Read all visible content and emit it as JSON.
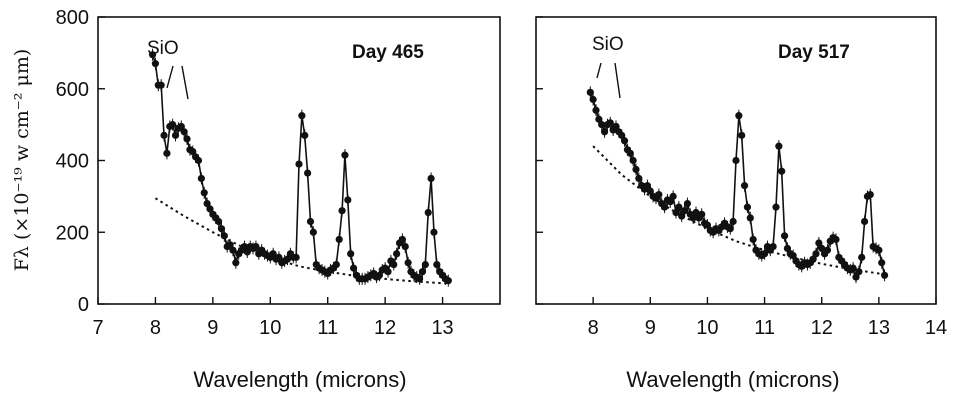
{
  "chart_data": [
    {
      "type": "scatter",
      "title": "",
      "annotation": "Day 465",
      "feature_label": "SiO",
      "xlabel": "Wavelength  (microns)",
      "ylabel": "Fλ  (×10⁻¹⁹ w cm⁻² μm)",
      "xlim": [
        7,
        14
      ],
      "ylim": [
        0,
        800
      ],
      "xticks": [
        "7",
        "8",
        "9",
        "10",
        "11",
        "12",
        "13"
      ],
      "yticks": [
        "0",
        "200",
        "400",
        "600",
        "800"
      ],
      "series": [
        {
          "style": "points-with-line",
          "points": [
            [
              7.95,
              695
            ],
            [
              8.0,
              670
            ],
            [
              8.05,
              610
            ],
            [
              8.1,
              610
            ],
            [
              8.15,
              470
            ],
            [
              8.2,
              420
            ],
            [
              8.25,
              495
            ],
            [
              8.3,
              500
            ],
            [
              8.35,
              470
            ],
            [
              8.4,
              490
            ],
            [
              8.45,
              495
            ],
            [
              8.5,
              480
            ],
            [
              8.55,
              460
            ],
            [
              8.6,
              430
            ],
            [
              8.65,
              425
            ],
            [
              8.7,
              410
            ],
            [
              8.75,
              400
            ],
            [
              8.8,
              350
            ],
            [
              8.85,
              310
            ],
            [
              8.9,
              280
            ],
            [
              8.95,
              265
            ],
            [
              9.0,
              250
            ],
            [
              9.05,
              240
            ],
            [
              9.1,
              230
            ],
            [
              9.15,
              210
            ],
            [
              9.2,
              190
            ],
            [
              9.25,
              160
            ],
            [
              9.3,
              165
            ],
            [
              9.35,
              150
            ],
            [
              9.4,
              115
            ],
            [
              9.45,
              140
            ],
            [
              9.5,
              150
            ],
            [
              9.55,
              160
            ],
            [
              9.6,
              145
            ],
            [
              9.65,
              160
            ],
            [
              9.7,
              155
            ],
            [
              9.75,
              160
            ],
            [
              9.8,
              140
            ],
            [
              9.85,
              150
            ],
            [
              9.9,
              140
            ],
            [
              9.95,
              135
            ],
            [
              10.0,
              130
            ],
            [
              10.05,
              140
            ],
            [
              10.1,
              125
            ],
            [
              10.15,
              130
            ],
            [
              10.2,
              115
            ],
            [
              10.25,
              120
            ],
            [
              10.3,
              125
            ],
            [
              10.35,
              140
            ],
            [
              10.4,
              130
            ],
            [
              10.45,
              130
            ],
            [
              10.5,
              390
            ],
            [
              10.55,
              525
            ],
            [
              10.6,
              470
            ],
            [
              10.65,
              365
            ],
            [
              10.7,
              230
            ],
            [
              10.75,
              200
            ],
            [
              10.8,
              110
            ],
            [
              10.85,
              100
            ],
            [
              10.9,
              95
            ],
            [
              10.95,
              90
            ],
            [
              11.0,
              85
            ],
            [
              11.05,
              95
            ],
            [
              11.1,
              100
            ],
            [
              11.15,
              110
            ],
            [
              11.2,
              180
            ],
            [
              11.25,
              260
            ],
            [
              11.3,
              415
            ],
            [
              11.35,
              290
            ],
            [
              11.4,
              140
            ],
            [
              11.45,
              100
            ],
            [
              11.5,
              80
            ],
            [
              11.55,
              70
            ],
            [
              11.6,
              70
            ],
            [
              11.65,
              70
            ],
            [
              11.7,
              75
            ],
            [
              11.75,
              80
            ],
            [
              11.8,
              85
            ],
            [
              11.85,
              75
            ],
            [
              11.9,
              80
            ],
            [
              11.95,
              95
            ],
            [
              12.0,
              100
            ],
            [
              12.05,
              90
            ],
            [
              12.1,
              120
            ],
            [
              12.15,
              110
            ],
            [
              12.2,
              140
            ],
            [
              12.25,
              170
            ],
            [
              12.3,
              180
            ],
            [
              12.35,
              160
            ],
            [
              12.4,
              115
            ],
            [
              12.45,
              90
            ],
            [
              12.5,
              80
            ],
            [
              12.55,
              75
            ],
            [
              12.6,
              70
            ],
            [
              12.65,
              90
            ],
            [
              12.7,
              110
            ],
            [
              12.75,
              255
            ],
            [
              12.8,
              350
            ],
            [
              12.85,
              200
            ],
            [
              12.9,
              110
            ],
            [
              12.95,
              90
            ],
            [
              13.0,
              80
            ],
            [
              13.05,
              70
            ],
            [
              13.1,
              65
            ]
          ]
        },
        {
          "style": "dotted-continuum",
          "points": [
            [
              8.0,
              295
            ],
            [
              8.5,
              245
            ],
            [
              9.0,
              200
            ],
            [
              9.5,
              160
            ],
            [
              10.0,
              130
            ],
            [
              10.5,
              105
            ],
            [
              11.0,
              90
            ],
            [
              11.5,
              78
            ],
            [
              12.0,
              70
            ],
            [
              12.5,
              63
            ],
            [
              13.0,
              58
            ],
            [
              13.1,
              58
            ]
          ]
        }
      ]
    },
    {
      "type": "scatter",
      "title": "",
      "annotation": "Day 517",
      "feature_label": "SiO",
      "xlabel": "Wavelength  (microns)",
      "ylabel": "",
      "xlim": [
        7,
        14
      ],
      "ylim": [
        0,
        800
      ],
      "xticks": [
        "8",
        "9",
        "10",
        "11",
        "12",
        "13",
        "14"
      ],
      "yticks": [],
      "series": [
        {
          "style": "points-with-line",
          "points": [
            [
              7.95,
              590
            ],
            [
              8.0,
              570
            ],
            [
              8.05,
              540
            ],
            [
              8.1,
              515
            ],
            [
              8.15,
              500
            ],
            [
              8.2,
              480
            ],
            [
              8.25,
              500
            ],
            [
              8.3,
              505
            ],
            [
              8.35,
              485
            ],
            [
              8.4,
              495
            ],
            [
              8.45,
              480
            ],
            [
              8.5,
              470
            ],
            [
              8.55,
              455
            ],
            [
              8.6,
              430
            ],
            [
              8.65,
              420
            ],
            [
              8.7,
              400
            ],
            [
              8.75,
              375
            ],
            [
              8.8,
              350
            ],
            [
              8.85,
              330
            ],
            [
              8.9,
              320
            ],
            [
              8.95,
              330
            ],
            [
              9.0,
              315
            ],
            [
              9.05,
              300
            ],
            [
              9.1,
              295
            ],
            [
              9.15,
              305
            ],
            [
              9.2,
              280
            ],
            [
              9.25,
              270
            ],
            [
              9.3,
              290
            ],
            [
              9.35,
              285
            ],
            [
              9.4,
              300
            ],
            [
              9.45,
              255
            ],
            [
              9.5,
              270
            ],
            [
              9.55,
              245
            ],
            [
              9.6,
              260
            ],
            [
              9.65,
              280
            ],
            [
              9.7,
              250
            ],
            [
              9.75,
              240
            ],
            [
              9.8,
              255
            ],
            [
              9.85,
              240
            ],
            [
              9.9,
              250
            ],
            [
              9.95,
              225
            ],
            [
              10.0,
              220
            ],
            [
              10.05,
              205
            ],
            [
              10.1,
              200
            ],
            [
              10.15,
              210
            ],
            [
              10.2,
              205
            ],
            [
              10.25,
              215
            ],
            [
              10.3,
              225
            ],
            [
              10.35,
              215
            ],
            [
              10.4,
              210
            ],
            [
              10.45,
              230
            ],
            [
              10.5,
              400
            ],
            [
              10.55,
              525
            ],
            [
              10.6,
              470
            ],
            [
              10.65,
              330
            ],
            [
              10.7,
              270
            ],
            [
              10.75,
              240
            ],
            [
              10.8,
              180
            ],
            [
              10.85,
              150
            ],
            [
              10.9,
              140
            ],
            [
              10.95,
              135
            ],
            [
              11.0,
              140
            ],
            [
              11.05,
              160
            ],
            [
              11.1,
              150
            ],
            [
              11.15,
              160
            ],
            [
              11.2,
              270
            ],
            [
              11.25,
              440
            ],
            [
              11.3,
              370
            ],
            [
              11.35,
              190
            ],
            [
              11.4,
              155
            ],
            [
              11.45,
              140
            ],
            [
              11.5,
              135
            ],
            [
              11.55,
              120
            ],
            [
              11.6,
              110
            ],
            [
              11.65,
              105
            ],
            [
              11.7,
              115
            ],
            [
              11.75,
              110
            ],
            [
              11.8,
              115
            ],
            [
              11.85,
              125
            ],
            [
              11.9,
              140
            ],
            [
              11.95,
              170
            ],
            [
              12.0,
              155
            ],
            [
              12.05,
              140
            ],
            [
              12.1,
              150
            ],
            [
              12.15,
              175
            ],
            [
              12.2,
              185
            ],
            [
              12.25,
              180
            ],
            [
              12.3,
              130
            ],
            [
              12.35,
              120
            ],
            [
              12.4,
              110
            ],
            [
              12.45,
              100
            ],
            [
              12.5,
              95
            ],
            [
              12.55,
              100
            ],
            [
              12.6,
              75
            ],
            [
              12.65,
              90
            ],
            [
              12.7,
              130
            ],
            [
              12.75,
              230
            ],
            [
              12.8,
              300
            ],
            [
              12.85,
              305
            ],
            [
              12.9,
              160
            ],
            [
              12.95,
              155
            ],
            [
              13.0,
              150
            ],
            [
              13.05,
              115
            ],
            [
              13.1,
              80
            ]
          ]
        },
        {
          "style": "dotted-continuum",
          "points": [
            [
              8.0,
              440
            ],
            [
              8.5,
              360
            ],
            [
              9.0,
              300
            ],
            [
              9.5,
              250
            ],
            [
              10.0,
              210
            ],
            [
              10.5,
              175
            ],
            [
              11.0,
              150
            ],
            [
              11.5,
              130
            ],
            [
              12.0,
              112
            ],
            [
              12.5,
              97
            ],
            [
              13.0,
              85
            ],
            [
              13.1,
              83
            ]
          ]
        }
      ]
    }
  ]
}
